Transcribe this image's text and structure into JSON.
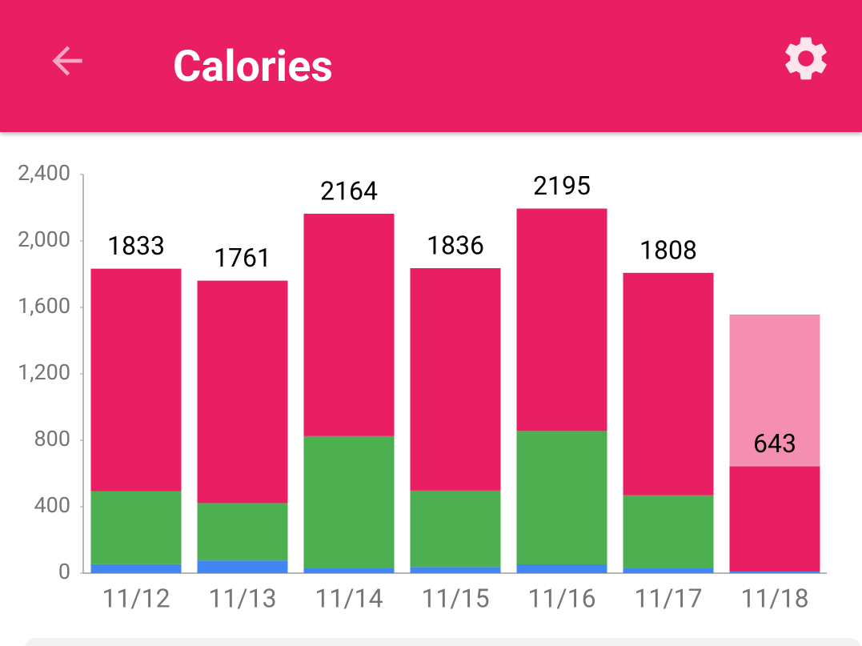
{
  "header": {
    "title": "Calories"
  },
  "chart_data": {
    "type": "stacked_bar",
    "categories": [
      "11/12",
      "11/13",
      "11/14",
      "11/15",
      "11/16",
      "11/17",
      "11/18"
    ],
    "series": [
      {
        "color": "#4285f4",
        "values": [
          54,
          76,
          31,
          37,
          53,
          31,
          10
        ]
      },
      {
        "color": "#4caf50",
        "values": [
          440,
          346,
          794,
          460,
          803,
          438,
          null
        ]
      },
      {
        "color": "#e91e63",
        "values": [
          1339,
          1339,
          1339,
          1339,
          1339,
          1339,
          633
        ]
      },
      {
        "color": "#f48fb1",
        "values": [
          null,
          null,
          null,
          null,
          null,
          null,
          914
        ]
      }
    ],
    "top_labels": [
      1833,
      1761,
      2164,
      1836,
      2195,
      1808,
      643
    ],
    "ylim": [
      0,
      2400
    ],
    "yticks": [
      0,
      400,
      800,
      {
        "value": 1200,
        "label": "1,200"
      },
      {
        "value": 1600,
        "label": "1,600"
      },
      {
        "value": 2000,
        "label": "2,000"
      },
      {
        "value": 2400,
        "label": "2,400"
      }
    ],
    "grid": false
  }
}
